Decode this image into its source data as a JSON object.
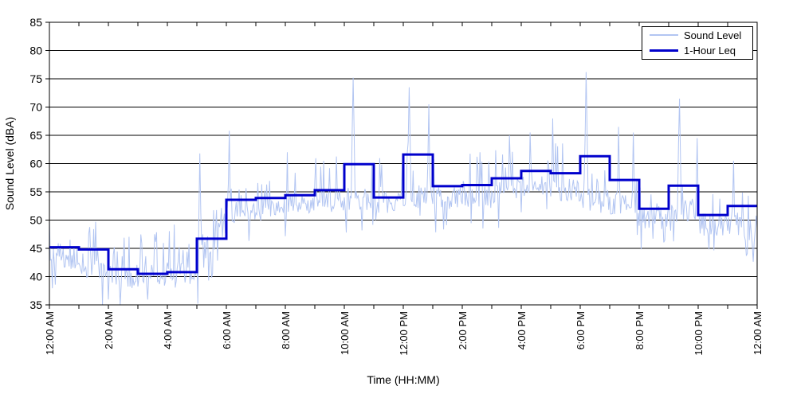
{
  "chart_data": {
    "type": "line",
    "title": "",
    "xlabel": "Time (HH:MM)",
    "ylabel": "Sound Level (dBA)",
    "ylim": [
      35,
      85
    ],
    "ytick_step": 5,
    "ytick_labels": [
      "85",
      "80",
      "75",
      "70",
      "65",
      "60",
      "55",
      "50",
      "45",
      "40",
      "35"
    ],
    "x_hours_range": [
      0,
      24
    ],
    "x_minor_tick_every_hours": 1,
    "xtick_labels": [
      {
        "hour": 0,
        "label": "12:00 AM"
      },
      {
        "hour": 2,
        "label": "2:00 AM"
      },
      {
        "hour": 4,
        "label": "4:00 AM"
      },
      {
        "hour": 6,
        "label": "6:00 AM"
      },
      {
        "hour": 8,
        "label": "8:00 AM"
      },
      {
        "hour": 10,
        "label": "10:00 AM"
      },
      {
        "hour": 12,
        "label": "12:00 PM"
      },
      {
        "hour": 14,
        "label": "2:00 PM"
      },
      {
        "hour": 16,
        "label": "4:00 PM"
      },
      {
        "hour": 18,
        "label": "6:00 PM"
      },
      {
        "hour": 20,
        "label": "8:00 PM"
      },
      {
        "hour": 22,
        "label": "10:00 PM"
      },
      {
        "hour": 24,
        "label": "12:00 AM"
      }
    ],
    "grid": "horizontal-solid-black",
    "legend_position": "top-right",
    "axis_color": "#000000",
    "series": [
      {
        "name": "Sound Level",
        "color": "#b2c5f2",
        "width": 1,
        "kind": "noisy-2min-trace",
        "points_per_hour": 30,
        "noise_seed": 20240601,
        "hour_profile": [
          {
            "base_start": 44.0,
            "base_end": 43.0,
            "spread": 3.5,
            "spike_max": 51.5
          },
          {
            "base_start": 42.5,
            "base_end": 40.5,
            "spread": 4.0,
            "spike_max": 50.0
          },
          {
            "base_start": 40.0,
            "base_end": 39.5,
            "spread": 3.8,
            "spike_max": 48.0
          },
          {
            "base_start": 39.5,
            "base_end": 40.0,
            "spread": 3.6,
            "spike_max": 48.5
          },
          {
            "base_start": 40.0,
            "base_end": 41.0,
            "spread": 4.0,
            "spike_max": 50.0
          },
          {
            "base_start": 42.0,
            "base_end": 49.0,
            "spread": 4.0,
            "spike_max": 53.0
          },
          {
            "base_start": 51.0,
            "base_end": 51.5,
            "spread": 3.0,
            "spike_max": 57.5
          },
          {
            "base_start": 51.5,
            "base_end": 52.0,
            "spread": 3.0,
            "spike_max": 58.0
          },
          {
            "base_start": 52.5,
            "base_end": 52.5,
            "spread": 3.0,
            "spike_max": 60.0
          },
          {
            "base_start": 53.0,
            "base_end": 53.5,
            "spread": 3.3,
            "spike_max": 62.0
          },
          {
            "base_start": 53.5,
            "base_end": 53.5,
            "spread": 3.3,
            "spike_max": 61.0
          },
          {
            "base_start": 53.0,
            "base_end": 53.0,
            "spread": 3.3,
            "spike_max": 62.0
          },
          {
            "base_start": 54.0,
            "base_end": 54.0,
            "spread": 3.4,
            "spike_max": 64.0
          },
          {
            "base_start": 53.5,
            "base_end": 53.5,
            "spread": 3.4,
            "spike_max": 61.0
          },
          {
            "base_start": 54.0,
            "base_end": 54.0,
            "spread": 3.4,
            "spike_max": 62.0
          },
          {
            "base_start": 54.5,
            "base_end": 55.0,
            "spread": 3.4,
            "spike_max": 63.0
          },
          {
            "base_start": 55.5,
            "base_end": 55.5,
            "spread": 3.4,
            "spike_max": 65.0
          },
          {
            "base_start": 55.5,
            "base_end": 55.0,
            "spread": 3.4,
            "spike_max": 64.0
          },
          {
            "base_start": 53.5,
            "base_end": 53.0,
            "spread": 3.4,
            "spike_max": 61.0
          },
          {
            "base_start": 52.5,
            "base_end": 52.0,
            "spread": 3.4,
            "spike_max": 60.0
          },
          {
            "base_start": 50.5,
            "base_end": 50.0,
            "spread": 3.4,
            "spike_max": 58.0
          },
          {
            "base_start": 51.5,
            "base_end": 51.5,
            "spread": 3.4,
            "spike_max": 59.0
          },
          {
            "base_start": 49.0,
            "base_end": 49.0,
            "spread": 3.4,
            "spike_max": 56.0
          },
          {
            "base_start": 49.5,
            "base_end": 47.0,
            "spread": 4.0,
            "spike_max": 58.0
          }
        ],
        "major_spikes": [
          {
            "t_hours": 5.1,
            "value": 61.8
          },
          {
            "t_hours": 6.1,
            "value": 65.8
          },
          {
            "t_hours": 8.05,
            "value": 62.0
          },
          {
            "t_hours": 9.3,
            "value": 60.5
          },
          {
            "t_hours": 10.3,
            "value": 75.2
          },
          {
            "t_hours": 12.2,
            "value": 73.5
          },
          {
            "t_hours": 12.85,
            "value": 70.5
          },
          {
            "t_hours": 14.6,
            "value": 62.0
          },
          {
            "t_hours": 15.6,
            "value": 65.0
          },
          {
            "t_hours": 16.3,
            "value": 65.5
          },
          {
            "t_hours": 17.05,
            "value": 68.0
          },
          {
            "t_hours": 18.2,
            "value": 76.2
          },
          {
            "t_hours": 19.3,
            "value": 66.5
          },
          {
            "t_hours": 19.8,
            "value": 65.5
          },
          {
            "t_hours": 21.35,
            "value": 71.5
          },
          {
            "t_hours": 21.95,
            "value": 64.5
          },
          {
            "t_hours": 23.2,
            "value": 60.5
          }
        ]
      },
      {
        "name": "1-Hour Leq",
        "color": "#0000cc",
        "width": 3,
        "kind": "hourly-step",
        "hourly_values": [
          45.2,
          44.8,
          41.3,
          40.5,
          40.8,
          46.7,
          53.6,
          53.9,
          54.4,
          55.3,
          59.9,
          54.0,
          61.6,
          56.0,
          56.2,
          57.4,
          58.7,
          58.3,
          61.3,
          57.1,
          52.0,
          56.1,
          50.9,
          52.5
        ]
      }
    ]
  }
}
